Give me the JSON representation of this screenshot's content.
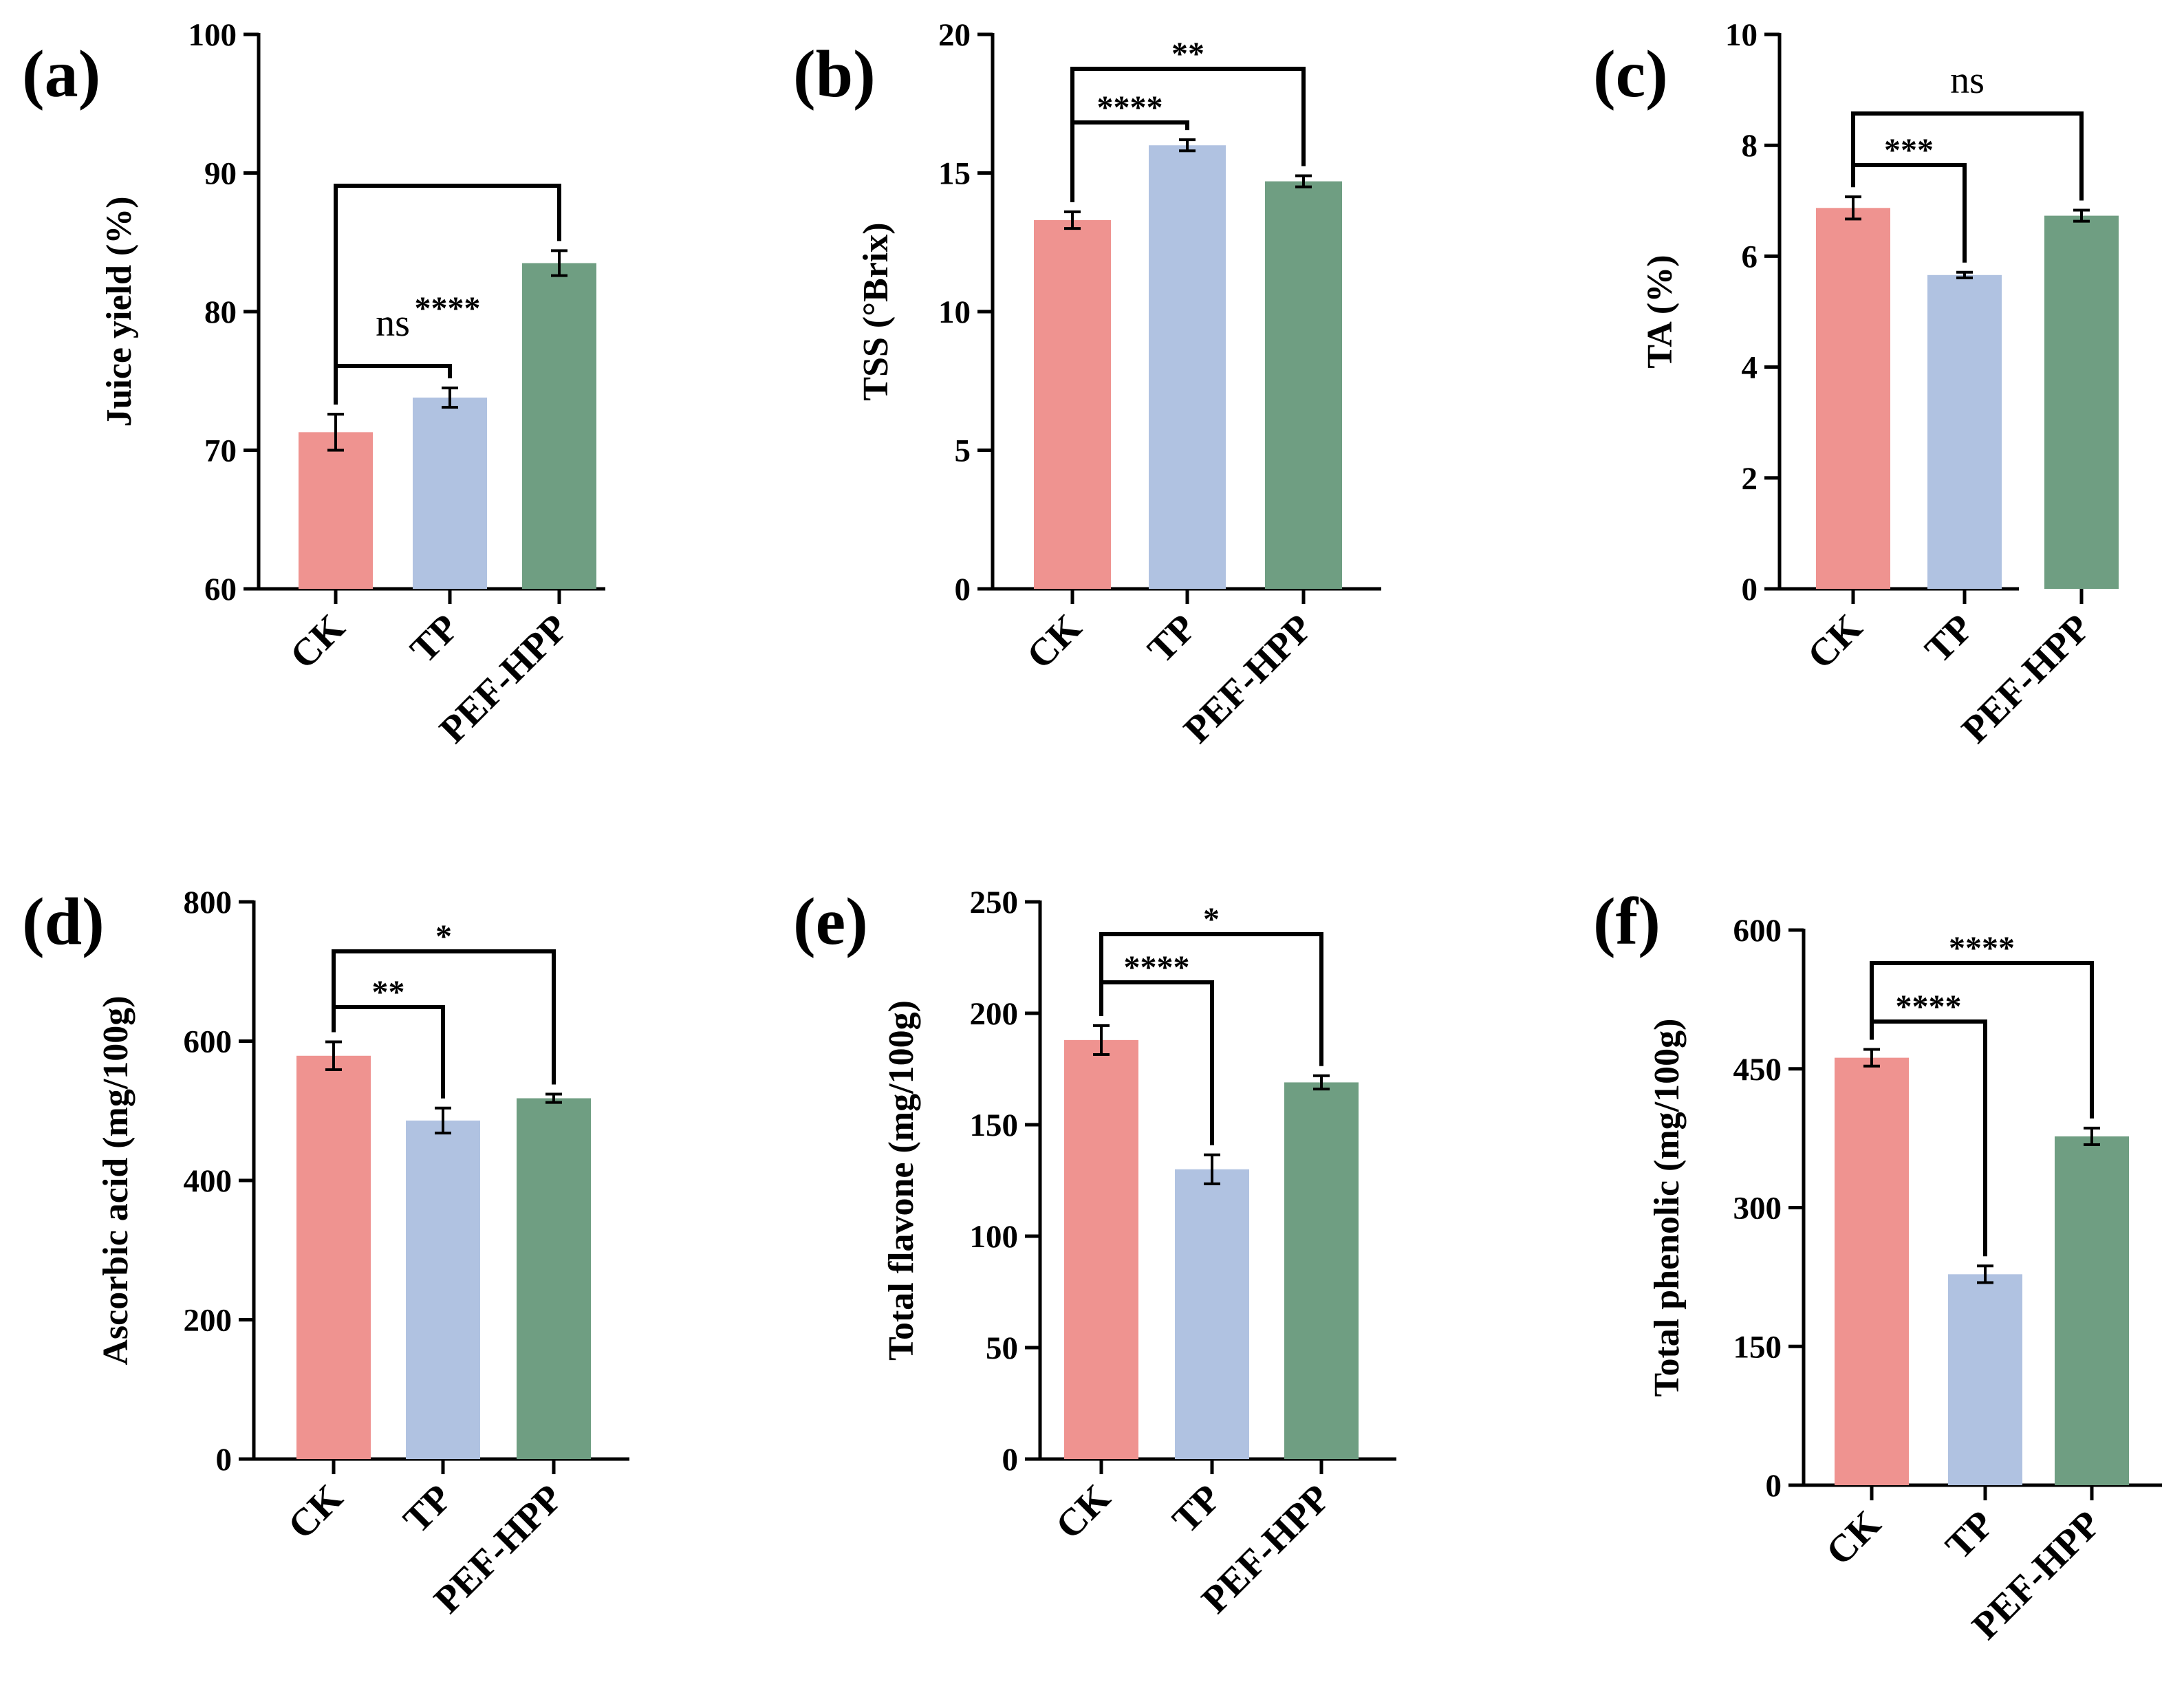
{
  "colors": {
    "CK": "#ef9390",
    "TP": "#b0c2e1",
    "PEF-HPP": "#6f9e82",
    "axis": "#000000"
  },
  "chart_data": [
    {
      "type": "bar",
      "panel": "(a)",
      "ylabel": "Juice yield (%)",
      "categories": [
        "CK",
        "TP",
        "PEF-HPP"
      ],
      "values": [
        71.3,
        73.8,
        83.5
      ],
      "errors": [
        1.3,
        0.7,
        0.9
      ],
      "ylim": [
        60,
        100
      ],
      "yticks": [
        "60",
        "70",
        "80",
        "90",
        "100"
      ],
      "comparisons": [
        {
          "from": 0,
          "to": 1,
          "label": "ns"
        },
        {
          "from": 0,
          "to": 2,
          "label": "****"
        }
      ]
    },
    {
      "type": "bar",
      "panel": "(b)",
      "ylabel": "TSS (°Brix)",
      "categories": [
        "CK",
        "TP",
        "PEF-HPP"
      ],
      "values": [
        13.3,
        16.0,
        14.7
      ],
      "errors": [
        0.3,
        0.2,
        0.2
      ],
      "ylim": [
        0,
        20
      ],
      "yticks": [
        "0",
        "5",
        "10",
        "15",
        "20"
      ],
      "comparisons": [
        {
          "from": 0,
          "to": 1,
          "label": "****"
        },
        {
          "from": 0,
          "to": 2,
          "label": "**"
        }
      ]
    },
    {
      "type": "bar",
      "panel": "(c)",
      "ylabel": "TA (%)",
      "categories": [
        "CK",
        "TP",
        "PEF-HPP"
      ],
      "values": [
        6.87,
        5.66,
        6.73
      ],
      "errors": [
        0.2,
        0.05,
        0.1
      ],
      "ylim": [
        0,
        10
      ],
      "yticks": [
        "0",
        "2",
        "4",
        "6",
        "8",
        "10"
      ],
      "comparisons": [
        {
          "from": 0,
          "to": 1,
          "label": "***"
        },
        {
          "from": 0,
          "to": 2,
          "label": "ns"
        }
      ]
    },
    {
      "type": "bar",
      "panel": "(d)",
      "ylabel": "Ascorbic acid (mg/100g)",
      "categories": [
        "CK",
        "TP",
        "PEF-HPP"
      ],
      "values": [
        579,
        486,
        518
      ],
      "errors": [
        20,
        18,
        6
      ],
      "ylim": [
        0,
        800
      ],
      "yticks": [
        "0",
        "200",
        "400",
        "600",
        "800"
      ],
      "comparisons": [
        {
          "from": 0,
          "to": 1,
          "label": "**"
        },
        {
          "from": 0,
          "to": 2,
          "label": "*"
        }
      ]
    },
    {
      "type": "bar",
      "panel": "(e)",
      "ylabel": "Total flavone (mg/100g)",
      "categories": [
        "CK",
        "TP",
        "PEF-HPP"
      ],
      "values": [
        188,
        130,
        169
      ],
      "errors": [
        6.5,
        6.5,
        3
      ],
      "ylim": [
        0,
        250
      ],
      "yticks": [
        "0",
        "50",
        "100",
        "150",
        "200",
        "250"
      ],
      "comparisons": [
        {
          "from": 0,
          "to": 1,
          "label": "****"
        },
        {
          "from": 0,
          "to": 2,
          "label": "*"
        }
      ]
    },
    {
      "type": "bar",
      "panel": "(f)",
      "ylabel": "Total phenolic (mg/100g)",
      "categories": [
        "CK",
        "TP",
        "PEF-HPP"
      ],
      "values": [
        462,
        228,
        377
      ],
      "errors": [
        9,
        9,
        9
      ],
      "ylim": [
        0,
        600
      ],
      "yticks": [
        "0",
        "150",
        "300",
        "450",
        "600"
      ],
      "comparisons": [
        {
          "from": 0,
          "to": 1,
          "label": "****"
        },
        {
          "from": 0,
          "to": 2,
          "label": "****"
        }
      ]
    }
  ]
}
